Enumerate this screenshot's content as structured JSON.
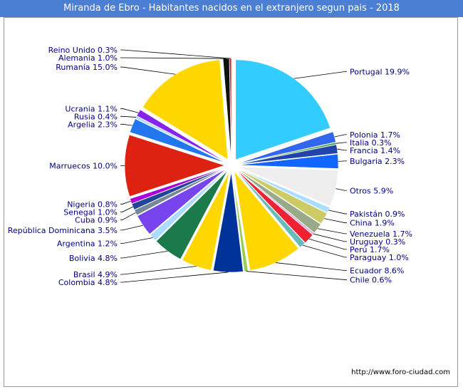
{
  "header": {
    "title": "Miranda de Ebro - Habitantes nacidos en el extranjero segun pais - 2018"
  },
  "footer": {
    "url": "http://www.foro-ciudad.com"
  },
  "chart_data": {
    "type": "pie",
    "title": "Miranda de Ebro - Habitantes nacidos en el extranjero segun pais - 2018",
    "unit": "%",
    "slices": [
      {
        "label": "Portugal",
        "value": 19.9,
        "text": "Portugal 19.9%",
        "color": "#33ccff"
      },
      {
        "label": "Polonia",
        "value": 1.7,
        "text": "Polonia 1.7%",
        "color": "#3366ee"
      },
      {
        "label": "Italia",
        "value": 0.3,
        "text": "Italia 0.3%",
        "color": "#44aa44"
      },
      {
        "label": "Francia",
        "value": 1.4,
        "text": "Francia 1.4%",
        "color": "#2244aa"
      },
      {
        "label": "Bulgaria",
        "value": 2.3,
        "text": "Bulgaria 2.3%",
        "color": "#1166ff"
      },
      {
        "label": "Otros",
        "value": 5.9,
        "text": "Otros 5.9%",
        "color": "#eeeeee"
      },
      {
        "label": "Pakistán",
        "value": 0.9,
        "text": "Pakistán 0.9%",
        "color": "#aaddff"
      },
      {
        "label": "China",
        "value": 1.9,
        "text": "China 1.9%",
        "color": "#cccc66"
      },
      {
        "label": "Venezuela",
        "value": 1.7,
        "text": "Venezuela 1.7%",
        "color": "#99aa88"
      },
      {
        "label": "Uruguay",
        "value": 0.3,
        "text": "Uruguay 0.3%",
        "color": "#ddaadd"
      },
      {
        "label": "Perú",
        "value": 1.7,
        "text": "Perú 1.7%",
        "color": "#ee2233"
      },
      {
        "label": "Paraguay",
        "value": 1.0,
        "text": "Paraguay 1.0%",
        "color": "#66bbbb"
      },
      {
        "label": "Ecuador",
        "value": 8.6,
        "text": "Ecuador 8.6%",
        "color": "#ffd700"
      },
      {
        "label": "Chile",
        "value": 0.6,
        "text": "Chile 0.6%",
        "color": "#99cc55"
      },
      {
        "label": "Colombia",
        "value": 4.8,
        "text": "Colombia 4.8%",
        "color": "#003399"
      },
      {
        "label": "Brasil",
        "value": 4.9,
        "text": "Brasil 4.9%",
        "color": "#ffd700"
      },
      {
        "label": "Bolivia",
        "value": 4.8,
        "text": "Bolivia 4.8%",
        "color": "#1a7a4a"
      },
      {
        "label": "Argentina",
        "value": 1.2,
        "text": "Argentina 1.2%",
        "color": "#aaddff"
      },
      {
        "label": "República Dominicana",
        "value": 3.5,
        "text": "República Dominicana 3.5%",
        "color": "#7744ee"
      },
      {
        "label": "Cuba",
        "value": 0.9,
        "text": "Cuba 0.9%",
        "color": "#778899"
      },
      {
        "label": "Senegal",
        "value": 1.0,
        "text": "Senegal 1.0%",
        "color": "#224499"
      },
      {
        "label": "Nigeria",
        "value": 0.8,
        "text": "Nigeria 0.8%",
        "color": "#aa00dd"
      },
      {
        "label": "Marruecos",
        "value": 10.0,
        "text": "Marruecos 10.0%",
        "color": "#dd2211"
      },
      {
        "label": "Argelia",
        "value": 2.3,
        "text": "Argelia 2.3%",
        "color": "#2277ee"
      },
      {
        "label": "Rusia",
        "value": 0.4,
        "text": "Rusia 0.4%",
        "color": "#aaddff"
      },
      {
        "label": "Ucrania",
        "value": 1.1,
        "text": "Ucrania 1.1%",
        "color": "#8822ee"
      },
      {
        "label": "Rumanía",
        "value": 15.0,
        "text": "Rumanía 15.0%",
        "color": "#ffd700"
      },
      {
        "label": "Alemania",
        "value": 1.0,
        "text": "Alemania 1.0%",
        "color": "#111111"
      },
      {
        "label": "Reino Unido",
        "value": 0.3,
        "text": "Reino Unido 0.3%",
        "color": "#cc2222"
      }
    ]
  }
}
